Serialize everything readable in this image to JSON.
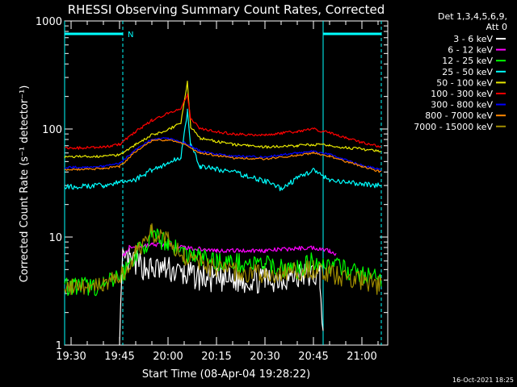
{
  "chart_data": {
    "type": "line",
    "title": "RHESSI Observing Summary Count Rates, Corrected",
    "xlabel": "Start Time (08-Apr-04 19:28:22)",
    "ylabel": "Corrected Count Rate (s⁻¹ detector⁻¹)",
    "y_scale": "log",
    "ylim": [
      1,
      1000
    ],
    "xlim": [
      "19:28",
      "21:08"
    ],
    "x_ticks": [
      "19:30",
      "19:45",
      "20:00",
      "20:15",
      "20:30",
      "20:45",
      "21:00"
    ],
    "y_ticks": [
      "1",
      "10",
      "100",
      "1000"
    ],
    "legend_header": [
      "Det 1,3,4,5,6,9,",
      "Att 0"
    ],
    "legend_position": "top-right, outside plot",
    "timestamp": "16-Oct-2021 18:25",
    "night_marker": "N",
    "night_intervals": [
      [
        "19:28",
        "19:46"
      ],
      [
        "20:48",
        "21:06"
      ]
    ],
    "series": [
      {
        "name": "3 - 6 keV",
        "color": "#ffffff",
        "x": [
          "19:28",
          "19:45",
          "19:46",
          "19:48",
          "19:55",
          "20:00",
          "20:05",
          "20:15",
          "20:30",
          "20:45",
          "20:47",
          "20:48"
        ],
        "values": [
          null,
          1.2,
          6,
          6,
          5,
          5,
          4.5,
          4,
          4,
          4.5,
          4.5,
          1.2
        ]
      },
      {
        "name": "6 - 12 keV",
        "color": "#ff00ff",
        "x": [
          "19:46",
          "19:48",
          "19:55",
          "20:00",
          "20:05",
          "20:15",
          "20:30",
          "20:45",
          "20:50",
          "20:52"
        ],
        "values": [
          6.5,
          8,
          8.5,
          8.5,
          8,
          7.5,
          7.5,
          8,
          7.5,
          7
        ]
      },
      {
        "name": "12 - 25 keV",
        "color": "#00ff00",
        "x": [
          "19:28",
          "19:40",
          "19:46",
          "19:50",
          "19:55",
          "20:00",
          "20:05",
          "20:15",
          "20:30",
          "20:40",
          "20:45",
          "20:50",
          "21:00",
          "21:06"
        ],
        "values": [
          3.5,
          3.5,
          4.5,
          7,
          10,
          9,
          7,
          6,
          5.5,
          5,
          6,
          5.5,
          4.5,
          4
        ]
      },
      {
        "name": "25 - 50 keV",
        "color": "#00ffff",
        "x": [
          "19:28",
          "19:40",
          "19:50",
          "19:55",
          "20:00",
          "20:04",
          "20:06",
          "20:07",
          "20:10",
          "20:20",
          "20:30",
          "20:35",
          "20:40",
          "20:45",
          "20:50",
          "21:00",
          "21:06"
        ],
        "values": [
          29,
          30,
          34,
          42,
          48,
          55,
          150,
          70,
          45,
          40,
          33,
          28,
          35,
          42,
          33,
          31,
          30
        ]
      },
      {
        "name": "50 - 100 keV",
        "color": "#e8e800",
        "x": [
          "19:28",
          "19:40",
          "19:45",
          "19:50",
          "19:55",
          "20:00",
          "20:04",
          "20:06",
          "20:07",
          "20:10",
          "20:20",
          "20:30",
          "20:40",
          "20:45",
          "20:50",
          "21:00",
          "21:06"
        ],
        "values": [
          55,
          56,
          58,
          72,
          88,
          98,
          115,
          270,
          105,
          82,
          72,
          68,
          70,
          72,
          70,
          65,
          62
        ]
      },
      {
        "name": "100 - 300 keV",
        "color": "#ff0000",
        "x": [
          "19:28",
          "19:40",
          "19:45",
          "19:50",
          "19:55",
          "20:00",
          "20:04",
          "20:06",
          "20:07",
          "20:10",
          "20:20",
          "20:30",
          "20:40",
          "20:45",
          "20:50",
          "21:00",
          "21:06"
        ],
        "values": [
          66,
          68,
          72,
          95,
          120,
          140,
          155,
          210,
          125,
          100,
          90,
          88,
          95,
          100,
          92,
          75,
          68
        ]
      },
      {
        "name": "300 - 800 keV",
        "color": "#0000ff",
        "x": [
          "19:28",
          "19:40",
          "19:45",
          "19:50",
          "19:55",
          "20:00",
          "20:05",
          "20:10",
          "20:20",
          "20:30",
          "20:40",
          "20:45",
          "20:50",
          "21:00",
          "21:06"
        ],
        "values": [
          44,
          45,
          48,
          65,
          80,
          82,
          75,
          62,
          56,
          55,
          60,
          62,
          58,
          46,
          42
        ]
      },
      {
        "name": "800 - 7000 keV",
        "color": "#ff8800",
        "x": [
          "19:28",
          "19:40",
          "19:45",
          "19:50",
          "19:55",
          "20:00",
          "20:05",
          "20:10",
          "20:20",
          "20:30",
          "20:40",
          "20:45",
          "20:50",
          "21:00",
          "21:06"
        ],
        "values": [
          42,
          43,
          45,
          62,
          78,
          80,
          72,
          60,
          54,
          53,
          57,
          60,
          56,
          45,
          40
        ]
      },
      {
        "name": "7000 - 15000 keV",
        "color": "#a08c00",
        "x": [
          "19:28",
          "19:40",
          "19:46",
          "19:50",
          "19:55",
          "20:00",
          "20:05",
          "20:15",
          "20:30",
          "20:45",
          "20:50",
          "21:00",
          "21:06"
        ],
        "values": [
          3.5,
          3.5,
          4.5,
          7,
          11,
          10,
          6.5,
          5,
          4.5,
          5,
          4.5,
          4,
          3.5
        ]
      }
    ]
  }
}
